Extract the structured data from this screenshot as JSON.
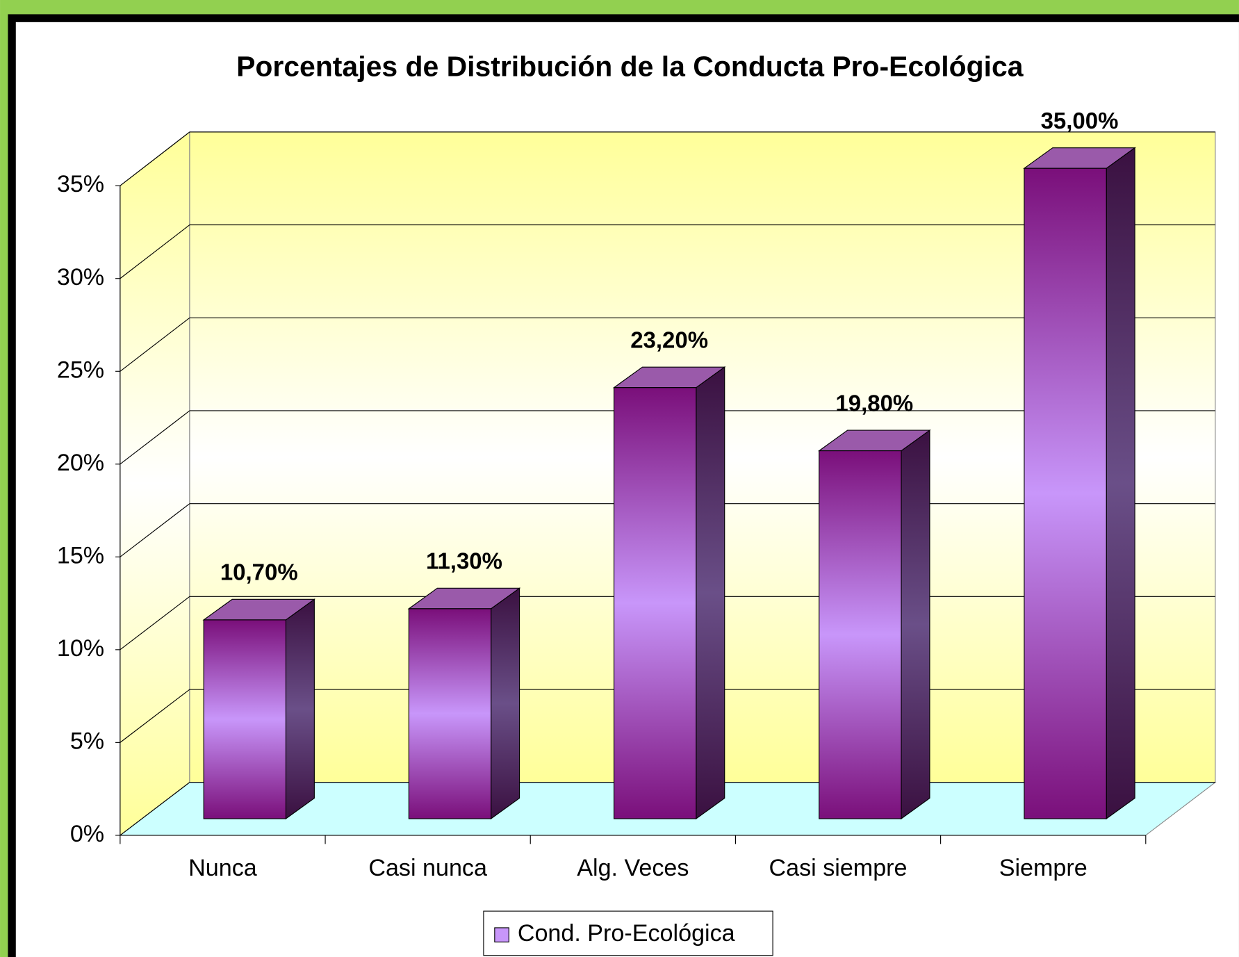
{
  "chart_data": {
    "type": "bar3d",
    "title": "Porcentajes de Distribución de la Conducta Pro-Ecológica",
    "categories": [
      "Nunca",
      "Casi nunca",
      "Alg. Veces",
      "Casi siempre",
      "Siempre"
    ],
    "series": [
      {
        "name": "Cond. Pro-Ecológica",
        "color": "#c896fa",
        "values": [
          10.7,
          11.3,
          23.2,
          19.8,
          35.0
        ],
        "value_labels": [
          "10,70%",
          "11,30%",
          "23,20%",
          "19,80%",
          "35,00%"
        ]
      }
    ],
    "ylim": [
      0,
      35
    ],
    "yticks": [
      {
        "value": 0,
        "label": "0%"
      },
      {
        "value": 5,
        "label": "5%"
      },
      {
        "value": 10,
        "label": "10%"
      },
      {
        "value": 15,
        "label": "15%"
      },
      {
        "value": 20,
        "label": "20%"
      },
      {
        "value": 25,
        "label": "25%"
      },
      {
        "value": 30,
        "label": "30%"
      },
      {
        "value": 35,
        "label": "35%"
      }
    ],
    "grid": true,
    "legend": "bottom"
  }
}
